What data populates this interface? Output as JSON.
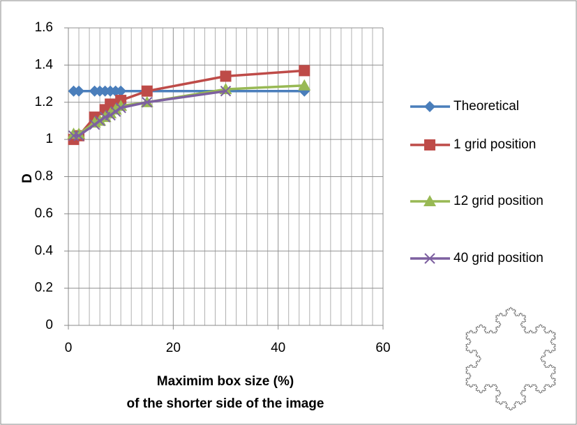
{
  "chart_data": {
    "type": "line",
    "xlabel": [
      "Maximim box size (%)",
      "of the shorter side of the image"
    ],
    "ylabel": "D",
    "xlim": [
      0,
      60
    ],
    "xticks": [
      0,
      20,
      40,
      60
    ],
    "xminorticks": [
      2,
      4,
      6,
      8,
      10,
      12,
      14,
      16,
      18,
      22,
      24,
      26,
      28,
      30,
      32,
      34,
      36,
      38,
      42,
      44,
      46,
      48,
      50,
      52,
      54,
      56,
      58
    ],
    "ylim": [
      0,
      1.6
    ],
    "yticks": [
      0,
      0.2,
      0.4,
      0.6,
      0.8,
      1,
      1.2,
      1.4,
      1.6
    ],
    "grid": true,
    "legend": "right",
    "series": [
      {
        "name": "Theoretical",
        "color": "#4a7ebb",
        "marker": "diamond",
        "x": [
          1,
          2,
          5,
          6,
          7,
          8,
          9,
          10,
          45
        ],
        "values": [
          1.26,
          1.26,
          1.26,
          1.26,
          1.26,
          1.26,
          1.26,
          1.26,
          1.26
        ]
      },
      {
        "name": "1 grid position",
        "color": "#be4b48",
        "marker": "square",
        "x": [
          1,
          2,
          5,
          7,
          8,
          10,
          15,
          30,
          45
        ],
        "values": [
          1.0,
          1.02,
          1.12,
          1.16,
          1.19,
          1.21,
          1.26,
          1.34,
          1.37
        ]
      },
      {
        "name": "12 grid position",
        "color": "#98b954",
        "marker": "triangle",
        "x": [
          1,
          2,
          5,
          6,
          7,
          8,
          9,
          10,
          15,
          30,
          45
        ],
        "values": [
          1.03,
          1.03,
          1.09,
          1.1,
          1.12,
          1.14,
          1.16,
          1.18,
          1.2,
          1.27,
          1.29
        ]
      },
      {
        "name": "40 grid position",
        "color": "#7d60a0",
        "marker": "x",
        "x": [
          1,
          2,
          5,
          6,
          7,
          8,
          9,
          10,
          15,
          30
        ],
        "values": [
          1.02,
          1.02,
          1.08,
          1.1,
          1.12,
          1.13,
          1.15,
          1.17,
          1.2,
          1.26
        ]
      }
    ]
  }
}
